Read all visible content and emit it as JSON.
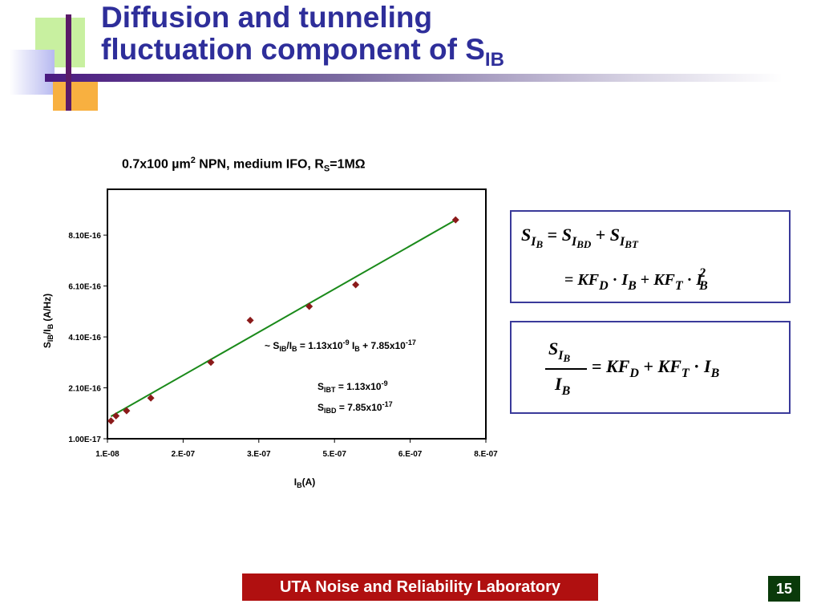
{
  "slide": {
    "title_line1": "Diffusion and tunneling",
    "title_line2": "fluctuation component of S",
    "title_sub": "IB",
    "footer": "UTA Noise and Reliability Laboratory",
    "page_number": "15"
  },
  "chart_data": {
    "type": "scatter",
    "title": {
      "pre": "0.7x100 µm",
      "sup": "2",
      "mid": " NPN, medium IFO, R",
      "sub": "S",
      "post": "=1MΩ"
    },
    "xlabel": "I",
    "xlabel_sub": "B",
    "xlabel_post": "(A)",
    "ylabel": "S",
    "ylabel_sub1": "IB",
    "ylabel_mid": "/I",
    "ylabel_sub2": "B",
    "ylabel_post": " (A/Hz)",
    "x_ticks": [
      "1.E-08",
      "2.E-07",
      "3.E-07",
      "5.E-07",
      "6.E-07",
      "8.E-07"
    ],
    "x_tick_values": [
      1e-08,
      1.6e-07,
      3.1e-07,
      4.6e-07,
      6.1e-07,
      7.6e-07
    ],
    "y_ticks": [
      "1.00E-17",
      "2.10E-16",
      "4.10E-16",
      "6.10E-16",
      "8.10E-16"
    ],
    "y_tick_values": [
      1e-17,
      2.1e-16,
      4.1e-16,
      6.1e-16,
      8.1e-16
    ],
    "xlim": [
      1e-08,
      7.6e-07
    ],
    "ylim": [
      1e-17,
      9.9e-16
    ],
    "grid": false,
    "series": [
      {
        "x": [
          1.7e-08,
          2.7e-08,
          4.8e-08,
          9.6e-08,
          2.15e-07,
          2.93e-07,
          4.1e-07,
          5.02e-07,
          7e-07
        ],
        "y": [
          8e-17,
          1e-16,
          1.2e-16,
          1.7e-16,
          3.1e-16,
          4.75e-16,
          5.3e-16,
          6.15e-16,
          8.7e-16
        ],
        "color": "#8b1a1a",
        "marker": "diamond"
      }
    ],
    "fit_line": {
      "slope": 1.13e-09,
      "intercept": 7.85e-17,
      "x_range": [
        1.7e-08,
        7e-07
      ],
      "color": "#1a8a1a"
    },
    "annotations": {
      "fit": {
        "t1": "~ S",
        "s1": "IB",
        "t2": "/I",
        "s2": "B",
        "t3": " = 1.13x10",
        "p1": "-9",
        "t4": " I",
        "s3": "B",
        "t5": " + 7.85x10",
        "p2": "-17"
      },
      "sibt": {
        "t1": "S",
        "s1": "IBT",
        "t2": " = 1.13x10",
        "p1": "-9"
      },
      "sibd": {
        "t1": "S",
        "s1": "IBD",
        "t2": " = 7.85x10",
        "p1": "-17"
      }
    }
  },
  "equations": {
    "eq1": {
      "S": "S",
      "I": "I",
      "B": "B",
      "eq": "=",
      "plus": "+",
      "D": "D",
      "T": "T",
      "KF": "KF",
      "dot": "·",
      "two": "2"
    },
    "eq2": {
      "S": "S",
      "I": "I",
      "B": "B",
      "eq": "=",
      "plus": "+",
      "D": "D",
      "T": "T",
      "KF": "KF",
      "dot": "·"
    }
  }
}
